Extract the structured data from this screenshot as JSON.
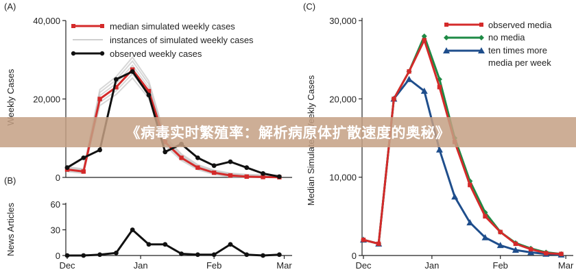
{
  "banner": {
    "text": "《病毒实时繁殖率：解析病原体扩散速度的奥秘》"
  },
  "colors": {
    "observed": "#111111",
    "median": "#d42a2a",
    "no_media": "#1e8a45",
    "ten_times": "#1f4e8c",
    "instances": "#bdbdbd"
  },
  "chart_data": [
    {
      "panel": "(A)",
      "type": "line",
      "ylabel": "Weekly Cases",
      "ylim": [
        0,
        40000
      ],
      "yticks": [
        "0",
        "20,000",
        "40,000"
      ],
      "xlim": [
        0,
        13.7
      ],
      "legend": [
        "median simulated weekly cases",
        "instances of simulated weekly cases",
        "observed weekly cases"
      ],
      "series": [
        {
          "name": "median simulated weekly cases",
          "color": "#d42a2a",
          "x": [
            0,
            1,
            2,
            3,
            4,
            5,
            6,
            7,
            8,
            9,
            10,
            11,
            12,
            13
          ],
          "values": [
            2000,
            1500,
            20000,
            23000,
            27500,
            22000,
            9000,
            5000,
            2500,
            1200,
            500,
            200,
            100,
            50
          ]
        },
        {
          "name": "observed weekly cases",
          "color": "#111111",
          "x": [
            0,
            1,
            2,
            3,
            4,
            5,
            6,
            7,
            8,
            9,
            10,
            11,
            12,
            13
          ],
          "values": [
            2500,
            5000,
            7000,
            25000,
            27000,
            21000,
            6500,
            8500,
            5000,
            3000,
            4000,
            2500,
            1000,
            200
          ]
        }
      ]
    },
    {
      "panel": "(B)",
      "type": "line",
      "ylabel": "News Articles",
      "ylim": [
        0,
        60
      ],
      "yticks": [
        "0",
        "30",
        "60"
      ],
      "xticks": [
        "Dec",
        "Jan",
        "Feb",
        "Mar"
      ],
      "xlim": [
        0,
        13.7
      ],
      "series": [
        {
          "name": "",
          "color": "#111111",
          "x": [
            0,
            1,
            2,
            3,
            4,
            5,
            6,
            7,
            8,
            9,
            10,
            11,
            12,
            13
          ],
          "values": [
            0,
            0,
            1,
            3,
            30,
            13,
            13,
            2,
            1,
            1,
            13,
            1,
            0,
            1
          ]
        }
      ]
    },
    {
      "panel": "(C)",
      "type": "line",
      "ylabel": "Median Simulated Weekly Cases",
      "ylim": [
        0,
        30000
      ],
      "yticks": [
        "0",
        "10,000",
        "20,000",
        "30,000"
      ],
      "xticks": [
        "Dec",
        "Jan",
        "Feb",
        "Mar"
      ],
      "xlim": [
        0,
        13.7
      ],
      "legend": [
        "observed media",
        "no media",
        "ten times more media per week"
      ],
      "series": [
        {
          "name": "observed media",
          "color": "#d42a2a",
          "marker": "square",
          "x": [
            0,
            1,
            2,
            3,
            4,
            5,
            6,
            7,
            8,
            9,
            10,
            11,
            12,
            13
          ],
          "values": [
            2000,
            1500,
            20000,
            23500,
            27500,
            21500,
            14500,
            9000,
            5000,
            3000,
            1500,
            800,
            300,
            200
          ]
        },
        {
          "name": "no media",
          "color": "#1e8a45",
          "marker": "diamond",
          "x": [
            0,
            1,
            2,
            3,
            4,
            5,
            6,
            7,
            8,
            9,
            10,
            11,
            12,
            13
          ],
          "values": [
            2000,
            1500,
            20000,
            23500,
            28000,
            22500,
            15000,
            9500,
            5500,
            3000,
            1600,
            900,
            400,
            200
          ]
        },
        {
          "name": "ten times more media per week",
          "color": "#1f4e8c",
          "marker": "triangle",
          "x": [
            0,
            1,
            2,
            3,
            4,
            5,
            6,
            7,
            8,
            9,
            10,
            11,
            12,
            13
          ],
          "values": [
            2000,
            1500,
            20000,
            22500,
            21000,
            13500,
            7500,
            4200,
            2300,
            1300,
            700,
            400,
            200,
            100
          ]
        }
      ]
    }
  ]
}
